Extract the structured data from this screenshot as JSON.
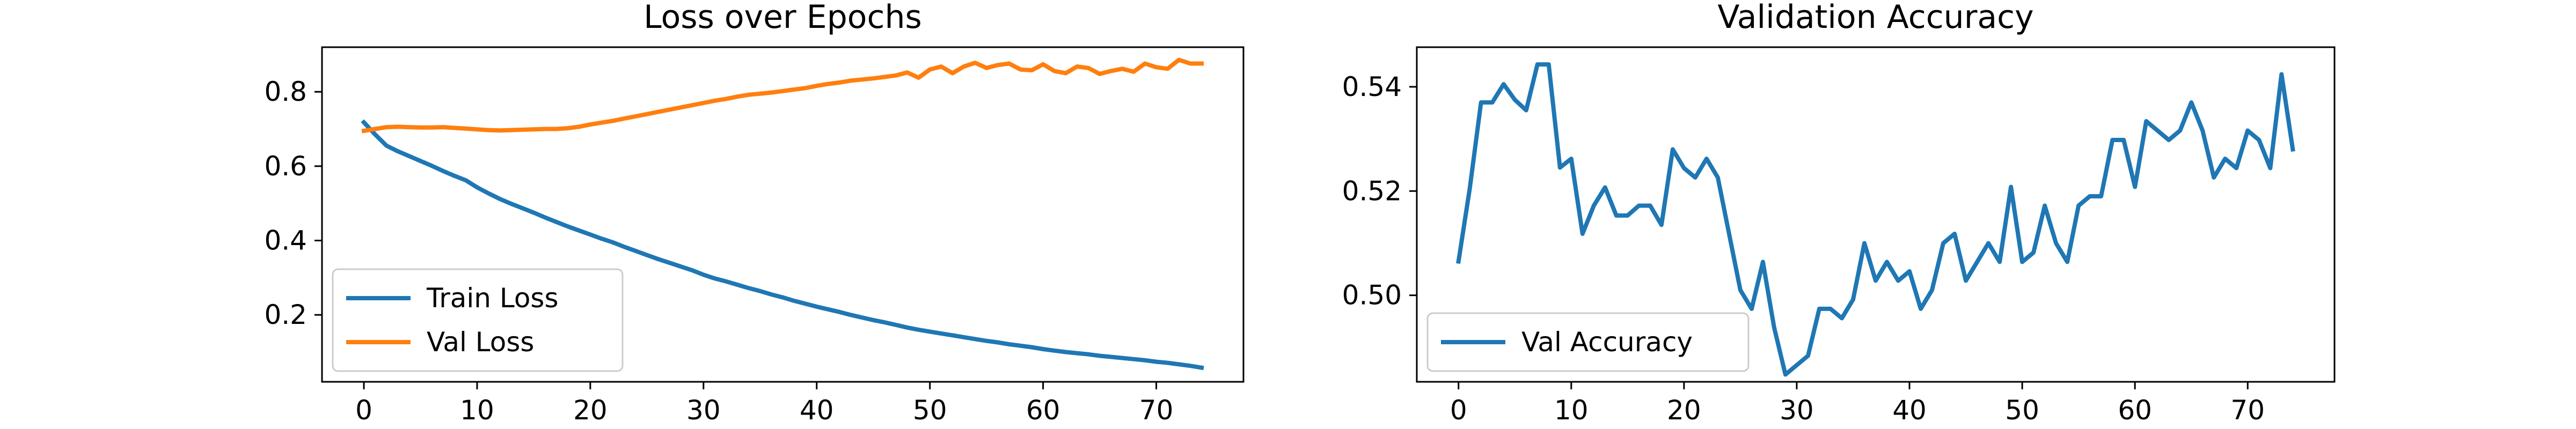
{
  "chart_data": [
    {
      "type": "line",
      "title": "Loss over Epochs",
      "xlabel": "",
      "ylabel": "",
      "xlim": [
        -3.7,
        77.7
      ],
      "ylim": [
        0.02,
        0.92
      ],
      "xticks": [
        0,
        10,
        20,
        30,
        40,
        50,
        60,
        70
      ],
      "yticks": [
        0.2,
        0.4,
        0.6,
        0.8
      ],
      "ytick_labels": [
        "0.2",
        "0.4",
        "0.6",
        "0.8"
      ],
      "grid": false,
      "legend": "lower left",
      "series": [
        {
          "name": "Train Loss",
          "color": "#1f77b4",
          "x": [
            0,
            1,
            2,
            3,
            4,
            5,
            6,
            7,
            8,
            9,
            10,
            11,
            12,
            13,
            14,
            15,
            16,
            17,
            18,
            19,
            20,
            21,
            22,
            23,
            24,
            25,
            26,
            27,
            28,
            29,
            30,
            31,
            32,
            33,
            34,
            35,
            36,
            37,
            38,
            39,
            40,
            41,
            42,
            43,
            44,
            45,
            46,
            47,
            48,
            49,
            50,
            51,
            52,
            53,
            54,
            55,
            56,
            57,
            58,
            59,
            60,
            61,
            62,
            63,
            64,
            65,
            66,
            67,
            68,
            69,
            70,
            71,
            72,
            73,
            74
          ],
          "values": [
            0.718,
            0.685,
            0.655,
            0.64,
            0.627,
            0.614,
            0.601,
            0.587,
            0.574,
            0.562,
            0.543,
            0.527,
            0.512,
            0.499,
            0.487,
            0.475,
            0.462,
            0.45,
            0.438,
            0.427,
            0.416,
            0.405,
            0.395,
            0.383,
            0.372,
            0.361,
            0.35,
            0.34,
            0.33,
            0.32,
            0.308,
            0.298,
            0.29,
            0.281,
            0.272,
            0.264,
            0.255,
            0.247,
            0.238,
            0.23,
            0.222,
            0.215,
            0.208,
            0.2,
            0.193,
            0.186,
            0.18,
            0.173,
            0.166,
            0.16,
            0.155,
            0.15,
            0.145,
            0.14,
            0.135,
            0.13,
            0.126,
            0.121,
            0.117,
            0.113,
            0.108,
            0.104,
            0.1,
            0.097,
            0.094,
            0.09,
            0.087,
            0.084,
            0.081,
            0.078,
            0.074,
            0.071,
            0.067,
            0.063,
            0.058
          ]
        },
        {
          "name": "Val Loss",
          "color": "#ff7f0e",
          "x": [
            0,
            1,
            2,
            3,
            4,
            5,
            6,
            7,
            8,
            9,
            10,
            11,
            12,
            13,
            14,
            15,
            16,
            17,
            18,
            19,
            20,
            21,
            22,
            23,
            24,
            25,
            26,
            27,
            28,
            29,
            30,
            31,
            32,
            33,
            34,
            35,
            36,
            37,
            38,
            39,
            40,
            41,
            42,
            43,
            44,
            45,
            46,
            47,
            48,
            49,
            50,
            51,
            52,
            53,
            54,
            55,
            56,
            57,
            58,
            59,
            60,
            61,
            62,
            63,
            64,
            65,
            66,
            67,
            68,
            69,
            70,
            71,
            72,
            73,
            74
          ],
          "values": [
            0.695,
            0.7,
            0.705,
            0.706,
            0.705,
            0.704,
            0.704,
            0.705,
            0.703,
            0.701,
            0.699,
            0.697,
            0.696,
            0.697,
            0.698,
            0.699,
            0.7,
            0.7,
            0.702,
            0.706,
            0.712,
            0.717,
            0.722,
            0.728,
            0.734,
            0.74,
            0.746,
            0.752,
            0.758,
            0.764,
            0.77,
            0.776,
            0.781,
            0.787,
            0.792,
            0.795,
            0.798,
            0.802,
            0.806,
            0.81,
            0.816,
            0.821,
            0.825,
            0.83,
            0.833,
            0.836,
            0.84,
            0.844,
            0.852,
            0.838,
            0.86,
            0.868,
            0.85,
            0.868,
            0.878,
            0.864,
            0.872,
            0.876,
            0.86,
            0.858,
            0.874,
            0.856,
            0.85,
            0.868,
            0.864,
            0.848,
            0.856,
            0.862,
            0.854,
            0.876,
            0.866,
            0.862,
            0.886,
            0.876,
            0.876
          ]
        }
      ]
    },
    {
      "type": "line",
      "title": "Validation Accuracy",
      "xlabel": "",
      "ylabel": "",
      "xlim": [
        -3.7,
        77.7
      ],
      "ylim": [
        0.4834,
        0.5476
      ],
      "xticks": [
        0,
        10,
        20,
        30,
        40,
        50,
        60,
        70
      ],
      "yticks": [
        0.5,
        0.52,
        0.54
      ],
      "ytick_labels": [
        "0.50",
        "0.52",
        "0.54"
      ],
      "grid": false,
      "legend": "lower left",
      "series": [
        {
          "name": "Val Accuracy",
          "color": "#1f77b4",
          "x": [
            0,
            1,
            2,
            3,
            4,
            5,
            6,
            7,
            8,
            9,
            10,
            11,
            12,
            13,
            14,
            15,
            16,
            17,
            18,
            19,
            20,
            21,
            22,
            23,
            24,
            25,
            26,
            27,
            28,
            29,
            30,
            31,
            32,
            33,
            34,
            35,
            36,
            37,
            38,
            39,
            40,
            41,
            42,
            43,
            44,
            45,
            46,
            47,
            48,
            49,
            50,
            51,
            52,
            53,
            54,
            55,
            56,
            57,
            58,
            59,
            60,
            61,
            62,
            63,
            64,
            65,
            66,
            67,
            68,
            69,
            70,
            71,
            72,
            73,
            74
          ],
          "values": [
            0.5065,
            0.5205,
            0.537,
            0.537,
            0.5405,
            0.5375,
            0.5355,
            0.5443,
            0.5443,
            0.5245,
            0.5262,
            0.5118,
            0.5172,
            0.5207,
            0.5153,
            0.5153,
            0.5172,
            0.5172,
            0.5135,
            0.528,
            0.5244,
            0.5226,
            0.5262,
            0.5226,
            0.5118,
            0.501,
            0.4974,
            0.5064,
            0.4938,
            0.4848,
            0.4866,
            0.4884,
            0.4974,
            0.4974,
            0.4956,
            0.4992,
            0.51,
            0.5028,
            0.5064,
            0.5028,
            0.5046,
            0.4974,
            0.501,
            0.51,
            0.5118,
            0.5028,
            0.5064,
            0.51,
            0.5064,
            0.5208,
            0.5064,
            0.5082,
            0.5172,
            0.51,
            0.5064,
            0.5172,
            0.519,
            0.519,
            0.5298,
            0.5298,
            0.5208,
            0.5334,
            0.5316,
            0.5298,
            0.5316,
            0.537,
            0.5316,
            0.5226,
            0.5262,
            0.5244,
            0.5316,
            0.5298,
            0.5244,
            0.5424,
            0.528
          ]
        }
      ]
    }
  ]
}
